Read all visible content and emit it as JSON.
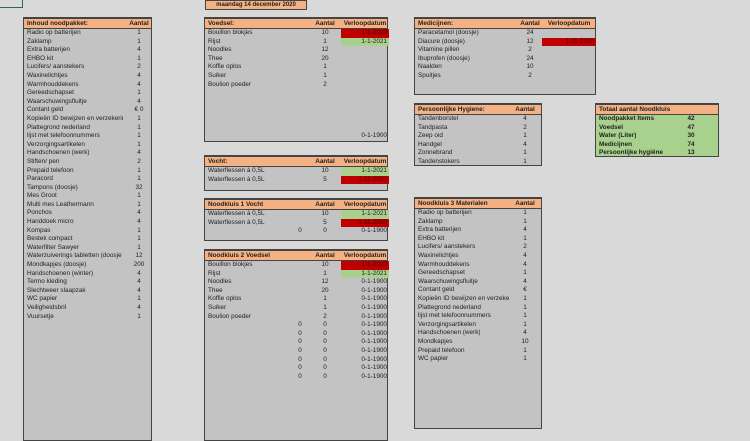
{
  "date_banner": "maandag 14 december 2020",
  "colors": {
    "header": "#f4b183",
    "expired": "#c00000",
    "valid": "#a9d08e",
    "panel": "#c3c3c3",
    "summary": "#a9d18e"
  },
  "panels": [
    {
      "id": "noodpakket",
      "title": "Inhoud noodpakket:",
      "cols": [
        "Aantal"
      ],
      "rows": [
        [
          "Radio op batterijen",
          "1"
        ],
        [
          "Zaklamp",
          "1"
        ],
        [
          "Extra batterijen",
          "4"
        ],
        [
          "EHBO kit",
          "1"
        ],
        [
          "Lucifers/ aanstekers",
          "2"
        ],
        [
          "Waxinelichtjes",
          "4"
        ],
        [
          "Warmhouddekens",
          "4"
        ],
        [
          "Gereedschapset",
          "1"
        ],
        [
          "Waarschuwingsfluitje",
          "4"
        ],
        [
          "Contant geld",
          "€ 0"
        ],
        [
          "Kopieën ID bewijzen en verzekerir",
          "1"
        ],
        [
          "Plattegrond nederland",
          "1"
        ],
        [
          "lijst met telefoonnummers",
          "1"
        ],
        [
          "Verzorgingsartikelen",
          "1"
        ],
        [
          "Handschoenen (werk)",
          "4"
        ],
        [
          "Stiften/ pen",
          "2"
        ],
        [
          "Prepaid telefoon",
          "1"
        ],
        [
          "Paracord",
          "1"
        ],
        [
          "Tampons (doosje)",
          "32"
        ],
        [
          "Mes Groot",
          "1"
        ],
        [
          "Multi mes Leathermann",
          "1"
        ],
        [
          "Ponchos",
          "4"
        ],
        [
          "Handdoek micro",
          "4"
        ],
        [
          "Kompas",
          "1"
        ],
        [
          "Bestek compact",
          "1"
        ],
        [
          "Waterfilter Sawyer",
          "1"
        ],
        [
          "Waterzuiverings tabletten (doosje",
          "12"
        ],
        [
          "Mondkapjes (doosje)",
          "200"
        ],
        [
          "Handschoenen (winter)",
          "4"
        ],
        [
          "Termo kleding",
          "4"
        ],
        [
          "Slechtweer slaapzak",
          "4"
        ],
        [
          "WC papier",
          "1"
        ],
        [
          "Veiligheidsbril",
          "4"
        ],
        [
          "Vuursetje",
          "1"
        ]
      ]
    },
    {
      "id": "voedsel",
      "title": "Voedsel:",
      "cols": [
        "Aantal",
        "Verloopdatum"
      ],
      "rows": [
        [
          "Bouillon blokjes",
          "10",
          "1-1-2020",
          "expired"
        ],
        [
          "Rijst",
          "1",
          "1-1-2021",
          "valid"
        ],
        [
          "Noodles",
          "12"
        ],
        [
          "Thee",
          "20"
        ],
        [
          "Koffie oplos",
          "1"
        ],
        [
          "Suiker",
          "1"
        ],
        [
          "Boulion poeder",
          "2"
        ]
      ],
      "footer_date": "0-1-1900"
    },
    {
      "id": "vocht",
      "title": "Vocht:",
      "cols": [
        "Aantal",
        "Verloopdatum"
      ],
      "rows": [
        [
          "Waterflessen à 0,5L",
          "10",
          "1-1-2021",
          "valid"
        ],
        [
          "Waterflessen à 0,5L",
          "5",
          "1-11-2020",
          "expired"
        ]
      ]
    },
    {
      "id": "noodkluis1",
      "title": "Noodkluis 1 Vocht",
      "cols": [
        "Aantal",
        "Verloopdatum"
      ],
      "rows": [
        [
          "Waterflessen à 0,5L",
          "10",
          "1-1-2021",
          "valid"
        ],
        [
          "Waterflessen à 0,5L",
          "5",
          "1-11-2020",
          "expired"
        ],
        [
          "",
          "0",
          "0-1-1900",
          "",
          "0"
        ]
      ]
    },
    {
      "id": "noodkluis2",
      "title": "Noodkluis 2 Voedsel",
      "cols": [
        "Aantal",
        "Verloopdatum"
      ],
      "rows": [
        [
          "Bouillon blokjes",
          "10",
          "1-1-2020",
          "expired"
        ],
        [
          "Rijst",
          "1",
          "1-1-2021",
          "valid"
        ],
        [
          "Noodles",
          "12",
          "0-1-1900"
        ],
        [
          "Thee",
          "20",
          "0-1-1900"
        ],
        [
          "Koffie oplos",
          "1",
          "0-1-1900"
        ],
        [
          "Suiker",
          "1",
          "0-1-1900"
        ],
        [
          "Boulion poeder",
          "2",
          "0-1-1900"
        ],
        [
          "",
          "0",
          "0-1-1900",
          "",
          "0"
        ],
        [
          "",
          "0",
          "0-1-1900",
          "",
          "0"
        ],
        [
          "",
          "0",
          "0-1-1900",
          "",
          "0"
        ],
        [
          "",
          "0",
          "0-1-1900",
          "",
          "0"
        ],
        [
          "",
          "0",
          "0-1-1900",
          "",
          "0"
        ],
        [
          "",
          "0",
          "0-1-1900",
          "",
          "0"
        ],
        [
          "",
          "0",
          "0-1-1900",
          "",
          "0"
        ]
      ]
    },
    {
      "id": "medicijnen",
      "title": "Medicijnen:",
      "cols": [
        "Aantal",
        "Verloopdatum"
      ],
      "rows": [
        [
          "Paracetamol (doosje)",
          "24"
        ],
        [
          "Diacure (doosje)",
          "12",
          "1-11-2020",
          "expired"
        ],
        [
          "Vitamine pillen",
          "2"
        ],
        [
          "Ibuprofen (doosje)",
          "24"
        ],
        [
          "Naalden",
          "10"
        ],
        [
          "Spuitjes",
          "2"
        ]
      ]
    },
    {
      "id": "hygiene",
      "title": "Persoonlijke Hygiene:",
      "cols": [
        "Aantal"
      ],
      "rows": [
        [
          "Tandenborstel",
          "4"
        ],
        [
          "Tandpasta",
          "2"
        ],
        [
          "Zeep oid",
          "1"
        ],
        [
          "Handgel",
          "4"
        ],
        [
          "Zonnebrand",
          "1"
        ],
        [
          "Tandenstokers",
          "1"
        ]
      ]
    },
    {
      "id": "totaal",
      "title": "Totaal aantal Noodkluis",
      "cols": [],
      "rows": [
        [
          "Noodpakket Items",
          "42"
        ],
        [
          "Voedsel",
          "47"
        ],
        [
          "Water (Liter)",
          "30"
        ],
        [
          "Medicijnen",
          "74"
        ],
        [
          "Persoonlijke hygiëne",
          "13"
        ]
      ]
    },
    {
      "id": "noodkluis3",
      "title": "Noodkluis 3 Materialen",
      "cols": [
        "Aantal"
      ],
      "rows": [
        [
          "Radio op batterijen",
          "1"
        ],
        [
          "Zaklamp",
          "1"
        ],
        [
          "Extra batterijen",
          "4"
        ],
        [
          "EHBO kit",
          "1"
        ],
        [
          "Lucifers/ aanstekers",
          "2"
        ],
        [
          "Waxinelichtjes",
          "4"
        ],
        [
          "Warmhouddekens",
          "4"
        ],
        [
          "Gereedschapset",
          "1"
        ],
        [
          "Waarschuwingsfluitje",
          "4"
        ],
        [
          "Contant geld",
          "€"
        ],
        [
          "Kopieën ID bewijzen en verzekerir",
          "1"
        ],
        [
          "Plattegrond nederland",
          "1"
        ],
        [
          "lijst met telefoonnummers",
          "1"
        ],
        [
          "Verzorgingsartikelen",
          "1"
        ],
        [
          "Handschoenen (werk)",
          "4"
        ],
        [
          "Mondkapjes",
          "10"
        ],
        [
          "Prepaid telefoon",
          "1"
        ],
        [
          "WC papier",
          "1"
        ]
      ]
    }
  ]
}
